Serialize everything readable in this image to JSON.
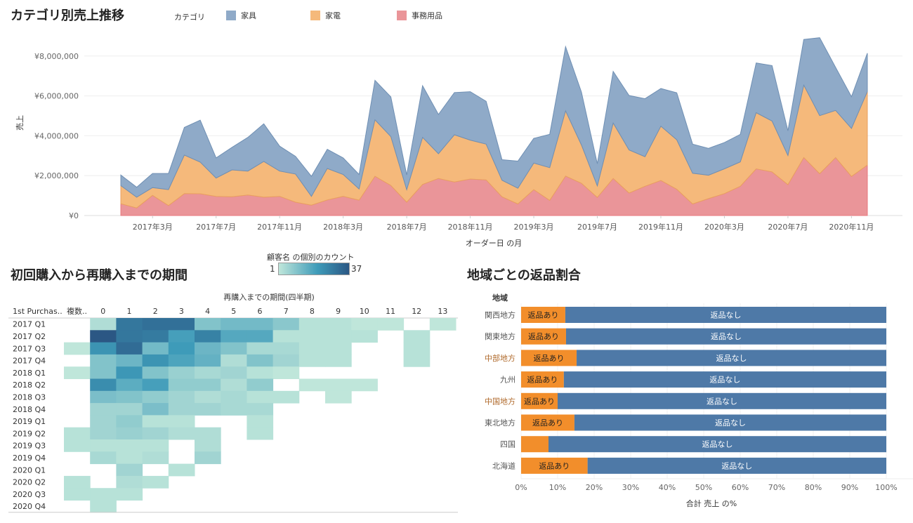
{
  "sales_chart": {
    "title": "カテゴリ別売上推移",
    "legend_title": "カテゴリ",
    "legend": [
      {
        "name": "家具",
        "color": "#8faac8"
      },
      {
        "name": "家電",
        "color": "#f5b97b"
      },
      {
        "name": "事務用品",
        "color": "#ea9599"
      }
    ]
  },
  "heatmap": {
    "title": "初回購入から再購入までの期間",
    "legend_title": "顧客名 の個別のカウント",
    "legend_min": "1",
    "legend_max": "37"
  },
  "returns": {
    "title": "地域ごとの返品割合"
  },
  "chart_data": [
    {
      "type": "area",
      "stacked": true,
      "xlabel": "オーダー日 の月",
      "ylabel": "売上",
      "ylim": [
        0,
        9000000
      ],
      "yticks": [
        0,
        2000000,
        4000000,
        6000000,
        8000000
      ],
      "ytick_labels": [
        "¥0",
        "¥2,000,000",
        "¥4,000,000",
        "¥6,000,000",
        "¥8,000,000"
      ],
      "x_start": "2017-01",
      "x_count": 48,
      "xtick_labels": [
        {
          "label": "2017年3月",
          "index": 2
        },
        {
          "label": "2017年7月",
          "index": 6
        },
        {
          "label": "2017年11月",
          "index": 10
        },
        {
          "label": "2018年3月",
          "index": 14
        },
        {
          "label": "2018年7月",
          "index": 18
        },
        {
          "label": "2018年11月",
          "index": 22
        },
        {
          "label": "2019年3月",
          "index": 26
        },
        {
          "label": "2019年7月",
          "index": 30
        },
        {
          "label": "2019年11月",
          "index": 34
        },
        {
          "label": "2020年3月",
          "index": 38
        },
        {
          "label": "2020年7月",
          "index": 42
        },
        {
          "label": "2020年11月",
          "index": 46
        }
      ],
      "series": [
        {
          "name": "事務用品",
          "values": [
            590000,
            380000,
            1010000,
            500000,
            1100000,
            1090000,
            960000,
            940000,
            1030000,
            920000,
            960000,
            670000,
            520000,
            780000,
            960000,
            770000,
            1970000,
            1510000,
            670000,
            1560000,
            1860000,
            1680000,
            1830000,
            1790000,
            940000,
            580000,
            1300000,
            760000,
            1980000,
            1620000,
            910000,
            1860000,
            1130000,
            1470000,
            1760000,
            1320000,
            580000,
            850000,
            1100000,
            1470000,
            2340000,
            2190000,
            1550000,
            2910000,
            2100000,
            2910000,
            1960000,
            2530000
          ]
        },
        {
          "name": "家電",
          "values": [
            910000,
            540000,
            390000,
            800000,
            1930000,
            1590000,
            920000,
            1350000,
            1200000,
            1790000,
            1270000,
            1410000,
            440000,
            1580000,
            1100000,
            560000,
            2830000,
            2450000,
            630000,
            2360000,
            1240000,
            2370000,
            1950000,
            1790000,
            830000,
            790000,
            1330000,
            1640000,
            3270000,
            1920000,
            580000,
            2780000,
            2160000,
            1480000,
            2720000,
            2480000,
            1540000,
            1170000,
            1240000,
            1220000,
            2820000,
            2550000,
            1460000,
            3630000,
            2910000,
            2360000,
            2410000,
            3690000
          ]
        },
        {
          "name": "家具",
          "values": [
            530000,
            500000,
            710000,
            810000,
            1390000,
            2100000,
            1010000,
            1130000,
            1690000,
            1890000,
            1250000,
            890000,
            1010000,
            960000,
            830000,
            730000,
            1980000,
            1990000,
            740000,
            2590000,
            1970000,
            2120000,
            2430000,
            2150000,
            1030000,
            1360000,
            1240000,
            1670000,
            3220000,
            2650000,
            1110000,
            2590000,
            2730000,
            2910000,
            1890000,
            2360000,
            1460000,
            1350000,
            1320000,
            1380000,
            2490000,
            2780000,
            1240000,
            2290000,
            3910000,
            2160000,
            1590000,
            1920000
          ]
        }
      ]
    },
    {
      "type": "heatmap",
      "title": "初回購入から再購入までの期間",
      "column_header": "再購入までの期間(四半期)",
      "row_header": "1st Purchas..",
      "columns": [
        "複数..",
        "0",
        "1",
        "2",
        "3",
        "4",
        "5",
        "6",
        "7",
        "8",
        "9",
        "10",
        "11",
        "12",
        "13"
      ],
      "rows": [
        "2017 Q1",
        "2017 Q2",
        "2017 Q3",
        "2017 Q4",
        "2018 Q1",
        "2018 Q2",
        "2018 Q3",
        "2018 Q4",
        "2019 Q1",
        "2019 Q2",
        "2019 Q3",
        "2019 Q4",
        "2020 Q1",
        "2020 Q2",
        "2020 Q3",
        "2020 Q4"
      ],
      "color_range": [
        1,
        37
      ],
      "values": [
        [
          null,
          3,
          28,
          30,
          30,
          9,
          11,
          11,
          8,
          2,
          2,
          1,
          1,
          null,
          1
        ],
        [
          null,
          37,
          28,
          27,
          17,
          25,
          15,
          15,
          2,
          2,
          2,
          2,
          null,
          2,
          null
        ],
        [
          1,
          20,
          31,
          11,
          18,
          12,
          9,
          4,
          4,
          2,
          2,
          null,
          null,
          2,
          null
        ],
        [
          null,
          9,
          12,
          20,
          16,
          13,
          3,
          9,
          5,
          2,
          2,
          null,
          null,
          2,
          null
        ],
        [
          1,
          9,
          19,
          9,
          6,
          4,
          5,
          2,
          1,
          null,
          null,
          null,
          null,
          null,
          null
        ],
        [
          null,
          22,
          14,
          17,
          7,
          7,
          3,
          7,
          null,
          1,
          1,
          1,
          null,
          null,
          null
        ],
        [
          null,
          10,
          9,
          7,
          5,
          3,
          4,
          2,
          2,
          null,
          1,
          null,
          null,
          null,
          null
        ],
        [
          null,
          5,
          5,
          10,
          5,
          5,
          4,
          4,
          null,
          null,
          null,
          null,
          null,
          null,
          null
        ],
        [
          null,
          5,
          7,
          2,
          2,
          null,
          null,
          2,
          null,
          null,
          null,
          null,
          null,
          null,
          null
        ],
        [
          2,
          5,
          6,
          5,
          3,
          3,
          null,
          2,
          null,
          null,
          null,
          null,
          null,
          null,
          null
        ],
        [
          2,
          2,
          2,
          2,
          null,
          3,
          null,
          null,
          null,
          null,
          null,
          null,
          null,
          null,
          null
        ],
        [
          null,
          4,
          2,
          3,
          null,
          5,
          null,
          null,
          null,
          null,
          null,
          null,
          null,
          null,
          null
        ],
        [
          null,
          null,
          5,
          null,
          2,
          null,
          null,
          null,
          null,
          null,
          null,
          null,
          null,
          null,
          null
        ],
        [
          2,
          null,
          3,
          2,
          null,
          null,
          null,
          null,
          null,
          null,
          null,
          null,
          null,
          null,
          null
        ],
        [
          2,
          2,
          2,
          null,
          null,
          null,
          null,
          null,
          null,
          null,
          null,
          null,
          null,
          null,
          null
        ],
        [
          null,
          2,
          null,
          null,
          null,
          null,
          null,
          null,
          null,
          null,
          null,
          null,
          null,
          null,
          null
        ]
      ]
    },
    {
      "type": "bar",
      "stacked": true,
      "orientation": "horizontal",
      "row_header": "地域",
      "xlabel": "合計 売上 の%",
      "xlim": [
        0,
        100
      ],
      "xtick_labels": [
        "0%",
        "10%",
        "20%",
        "30%",
        "40%",
        "50%",
        "60%",
        "70%",
        "80%",
        "90%",
        "100%"
      ],
      "categories": [
        "関西地方",
        "関東地方",
        "中部地方",
        "九州",
        "中国地方",
        "東北地方",
        "四国",
        "北海道"
      ],
      "highlighted": [
        "中部地方",
        "中国地方"
      ],
      "series": [
        {
          "name": "返品あり",
          "color": "#f28e2b",
          "values": [
            12.1,
            12.3,
            15.2,
            11.7,
            10.0,
            14.6,
            7.5,
            18.2
          ],
          "show_label": [
            true,
            true,
            true,
            true,
            true,
            true,
            false,
            true
          ]
        },
        {
          "name": "返品なし",
          "color": "#4e79a7",
          "values": [
            87.9,
            87.7,
            84.8,
            88.3,
            90.0,
            85.4,
            92.5,
            81.8
          ]
        }
      ]
    }
  ]
}
